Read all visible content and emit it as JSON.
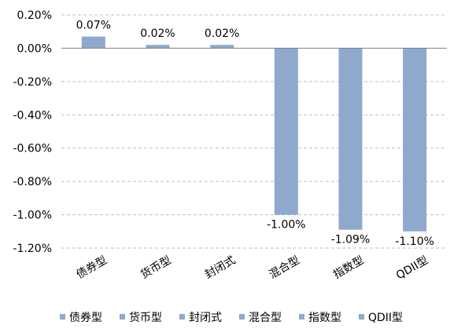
{
  "chart_data": {
    "type": "bar",
    "categories": [
      "债券型",
      "货币型",
      "封闭式",
      "混合型",
      "指数型",
      "QDII型"
    ],
    "values": [
      0.07,
      0.02,
      0.02,
      -1.0,
      -1.09,
      -1.1
    ],
    "data_labels": [
      "0.07%",
      "0.02%",
      "0.02%",
      "-1.00%",
      "-1.09%",
      "-1.10%"
    ],
    "y_ticks": [
      "0.20%",
      "0.00%",
      "-0.20%",
      "-0.40%",
      "-0.60%",
      "-0.80%",
      "-1.00%",
      "-1.20%"
    ],
    "ylim": [
      -1.2,
      0.2
    ],
    "y_tick_step": 0.2,
    "unit": "%",
    "bar_color": "#8EA9CD",
    "grid": "horizontal dashed",
    "legend": "bottom",
    "legend_entries": [
      "债券型",
      "货币型",
      "封闭式",
      "混合型",
      "指数型",
      "QDII型"
    ]
  }
}
